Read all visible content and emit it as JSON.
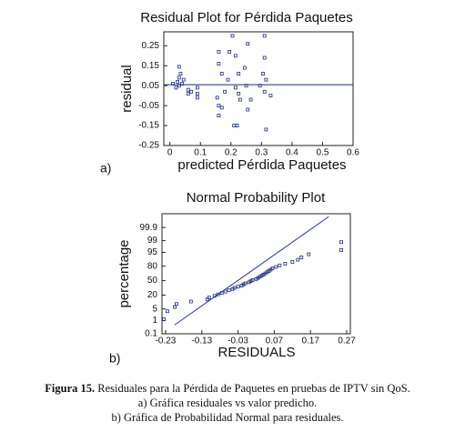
{
  "chart_data": [
    {
      "type": "scatter",
      "title": "Residual Plot for Pérdida Paquetes",
      "x_label": "predicted Pérdida Paquetes",
      "y_label": "residual",
      "panel_label": "a)",
      "color": "#1a2a80",
      "xlim": [
        -0.02,
        0.6
      ],
      "ylim": [
        -0.25,
        0.32
      ],
      "xticks": [
        0,
        0.1,
        0.2,
        0.3,
        0.4,
        0.5,
        0.6
      ],
      "yticks": [
        -0.25,
        -0.15,
        -0.05,
        0.05,
        0.15,
        0.25
      ],
      "reference_y": 0.055,
      "x": [
        0.01,
        0.02,
        0.025,
        0.03,
        0.03,
        0.035,
        0.04,
        0.045,
        0.03,
        0.06,
        0.06,
        0.07,
        0.09,
        0.09,
        0.09,
        0.16,
        0.16,
        0.17,
        0.155,
        0.16,
        0.16,
        0.17,
        0.18,
        0.205,
        0.195,
        0.215,
        0.225,
        0.215,
        0.225,
        0.21,
        0.22,
        0.23,
        0.19,
        0.255,
        0.245,
        0.25,
        0.265,
        0.255,
        0.31,
        0.31,
        0.305,
        0.315,
        0.295,
        0.31,
        0.315,
        0.33
      ],
      "values": [
        0.06,
        0.04,
        0.07,
        0.09,
        0.05,
        0.11,
        0.06,
        0.08,
        0.145,
        0.03,
        0.01,
        0.02,
        0.04,
        0.01,
        -0.01,
        0.22,
        0.16,
        0.11,
        -0.01,
        -0.05,
        -0.1,
        -0.06,
        0.02,
        0.3,
        0.22,
        0.2,
        0.11,
        0.04,
        0.01,
        -0.15,
        -0.15,
        -0.02,
        0.08,
        0.26,
        0.14,
        0.05,
        -0.02,
        -0.07,
        0.3,
        0.19,
        0.11,
        0.08,
        0.05,
        0.02,
        -0.17,
        0.0
      ]
    },
    {
      "type": "normal_probability",
      "title": "Normal Probability Plot",
      "x_label": "RESIDUALS",
      "y_label": "percentage",
      "panel_label": "b)",
      "color": "#1a2a80",
      "yscale": "probit",
      "xlim": [
        -0.24,
        0.28
      ],
      "ylim": [
        0.1,
        99.995
      ],
      "xticks": [
        -0.23,
        -0.13,
        -0.03,
        0.07,
        0.17,
        0.27
      ],
      "yticks": [
        0.1,
        1,
        5,
        20,
        50,
        80,
        95,
        99,
        99.9
      ],
      "reference_line": {
        "x": [
          -0.205,
          0.22
        ],
        "y": [
          0.5,
          99.99
        ]
      },
      "x": [
        -0.235,
        -0.225,
        -0.205,
        -0.2,
        -0.16,
        -0.115,
        -0.11,
        -0.095,
        -0.085,
        -0.075,
        -0.065,
        -0.055,
        -0.045,
        -0.04,
        -0.03,
        -0.02,
        -0.015,
        -0.01,
        0.0,
        0.005,
        0.01,
        0.02,
        0.025,
        0.03,
        0.035,
        0.04,
        0.045,
        0.05,
        0.055,
        0.06,
        0.065,
        0.075,
        0.085,
        0.1,
        0.12,
        0.135,
        0.145,
        0.165,
        0.255,
        0.255
      ],
      "values": [
        1.25,
        3.75,
        6.25,
        8.75,
        11.25,
        13.75,
        16.25,
        18.75,
        21.25,
        23.75,
        26.25,
        28.75,
        31.25,
        33.75,
        36.25,
        38.75,
        41.25,
        43.75,
        46.25,
        48.75,
        51.25,
        53.75,
        56.25,
        58.75,
        61.25,
        63.75,
        66.25,
        68.75,
        71.25,
        73.75,
        76.25,
        78.75,
        81.25,
        83.75,
        86.25,
        88.75,
        91.25,
        93.75,
        96.25,
        98.75
      ]
    }
  ],
  "caption": {
    "label": "Figura 15.",
    "text": "Residuales para la Pérdida de Paquetes en pruebas de IPTV sin QoS.",
    "line2": "a) Gráfica residuales vs valor predicho.",
    "line3": "b) Gráfica de Probabilidad Normal para residuales."
  }
}
